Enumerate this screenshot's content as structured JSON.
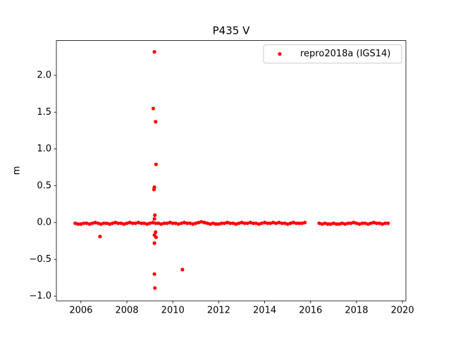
{
  "chart_data": {
    "type": "scatter",
    "title": "P435 V",
    "ylabel": "m",
    "xlim": [
      2004.93,
      2020.15
    ],
    "xticks": [
      2006,
      2008,
      2010,
      2012,
      2014,
      2016,
      2018,
      2020
    ],
    "ylim": [
      -1.064,
      2.473
    ],
    "yticks": [
      {
        "value": -1.0,
        "label": "−1.0"
      },
      {
        "value": -0.5,
        "label": "−0.5"
      },
      {
        "value": 0.0,
        "label": "0.0"
      },
      {
        "value": 0.5,
        "label": "0.5"
      },
      {
        "value": 1.0,
        "label": "1.0"
      },
      {
        "value": 1.5,
        "label": "1.5"
      },
      {
        "value": 2.0,
        "label": "2.0"
      }
    ],
    "legend": "upper right",
    "series": [
      {
        "name": "repro2018a (IGS14)",
        "color": "#ff0000",
        "x": [
          2005.75,
          2005.875,
          2006,
          2006.125,
          2006.25,
          2006.375,
          2006.5,
          2006.625,
          2006.75,
          2006.875,
          2007,
          2007.125,
          2007.25,
          2007.375,
          2007.5,
          2007.625,
          2007.75,
          2007.875,
          2008,
          2008.125,
          2008.25,
          2008.375,
          2008.5,
          2008.625,
          2008.75,
          2008.875,
          2009,
          2009.125,
          2009.25,
          2009.375,
          2009.5,
          2009.625,
          2009.75,
          2009.875,
          2010,
          2010.125,
          2010.25,
          2010.375,
          2010.5,
          2010.625,
          2010.75,
          2010.875,
          2011,
          2011.125,
          2011.25,
          2011.375,
          2011.5,
          2011.625,
          2011.75,
          2011.875,
          2012,
          2012.125,
          2012.25,
          2012.375,
          2012.5,
          2012.625,
          2012.75,
          2012.875,
          2013,
          2013.125,
          2013.25,
          2013.375,
          2013.5,
          2013.625,
          2013.75,
          2013.875,
          2014,
          2014.125,
          2014.25,
          2014.375,
          2014.5,
          2014.625,
          2014.75,
          2014.875,
          2015,
          2015.125,
          2015.25,
          2015.375,
          2015.5,
          2015.625,
          2015.75,
          2016.375,
          2016.5,
          2016.625,
          2016.75,
          2016.875,
          2017,
          2017.125,
          2017.25,
          2017.375,
          2017.5,
          2017.625,
          2017.75,
          2017.875,
          2018,
          2018.125,
          2018.25,
          2018.375,
          2018.5,
          2018.625,
          2018.75,
          2018.875,
          2019,
          2019.125,
          2019.25,
          2019.375,
          2006.83,
          2009.15,
          2009.2,
          2009.25,
          2009.27,
          2009.2,
          2009.18,
          2009.22,
          2009.2,
          2009.25,
          2009.2,
          2009.27,
          2009.2,
          2009.2,
          2009.22,
          2010.42
        ],
        "values": [
          -0.01,
          -0.02,
          -0.02,
          -0.01,
          -0.01,
          -0.02,
          -0.01,
          0,
          -0.01,
          -0.02,
          -0.01,
          -0.01,
          -0.02,
          -0.01,
          0,
          -0.01,
          -0.01,
          -0.02,
          -0.01,
          0,
          -0.01,
          -0.01,
          0,
          -0.01,
          -0.01,
          -0.02,
          -0.01,
          0,
          -0.01,
          -0.01,
          -0.02,
          -0.01,
          -0.01,
          0,
          -0.01,
          -0.01,
          -0.02,
          -0.01,
          0,
          -0.01,
          -0.01,
          -0.02,
          -0.01,
          0,
          0.01,
          0,
          -0.01,
          -0.02,
          -0.01,
          -0.02,
          -0.02,
          -0.01,
          -0.01,
          0,
          -0.01,
          -0.01,
          -0.02,
          -0.01,
          0,
          -0.01,
          -0.01,
          0,
          -0.01,
          -0.01,
          -0.02,
          -0.01,
          0,
          -0.01,
          -0.01,
          0,
          -0.01,
          0,
          -0.01,
          -0.01,
          -0.02,
          -0.01,
          0,
          -0.01,
          -0.01,
          -0.01,
          0,
          -0.01,
          -0.02,
          -0.01,
          -0.02,
          -0.02,
          -0.01,
          -0.02,
          -0.02,
          -0.01,
          -0.02,
          -0.01,
          -0.01,
          0,
          -0.01,
          -0.02,
          -0.01,
          -0.01,
          -0.02,
          -0.01,
          0,
          -0.01,
          -0.01,
          -0.02,
          -0.01,
          -0.01,
          -0.19,
          1.55,
          2.32,
          1.37,
          0.79,
          0.48,
          0.45,
          0.1,
          0.05,
          -0.13,
          -0.17,
          -0.2,
          -0.28,
          -0.7,
          -0.89,
          -0.64
        ]
      }
    ]
  }
}
